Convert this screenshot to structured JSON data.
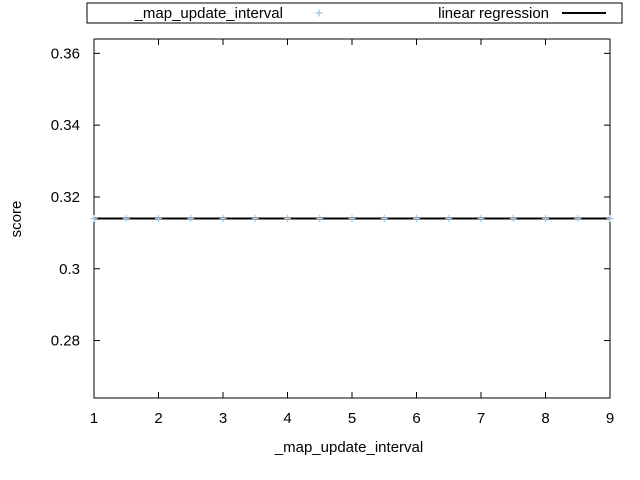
{
  "chart_data": {
    "type": "scatter",
    "xlabel": "_map_update_interval",
    "ylabel": "score",
    "xlim": [
      1,
      9
    ],
    "ylim": [
      0.264,
      0.364
    ],
    "x_ticks": [
      "1",
      "2",
      "3",
      "4",
      "5",
      "6",
      "7",
      "8",
      "9"
    ],
    "y_ticks": [
      "0.28",
      "0.3",
      "0.32",
      "0.34",
      "0.36"
    ],
    "grid": false,
    "legend_position": "top",
    "series": [
      {
        "name": "_map_update_interval",
        "kind": "points",
        "marker": "plus",
        "color": "#9ec3e6",
        "x": [
          1,
          1.5,
          2,
          2.5,
          3,
          3.5,
          4,
          4.5,
          5,
          5.5,
          6,
          6.5,
          7,
          7.5,
          8,
          8.5,
          9
        ],
        "y": [
          0.314,
          0.314,
          0.314,
          0.314,
          0.314,
          0.314,
          0.314,
          0.314,
          0.314,
          0.314,
          0.314,
          0.314,
          0.314,
          0.314,
          0.314,
          0.314,
          0.314
        ]
      },
      {
        "name": "linear regression",
        "kind": "line",
        "color": "#000000",
        "x": [
          1,
          9
        ],
        "y": [
          0.314,
          0.314
        ]
      }
    ]
  }
}
